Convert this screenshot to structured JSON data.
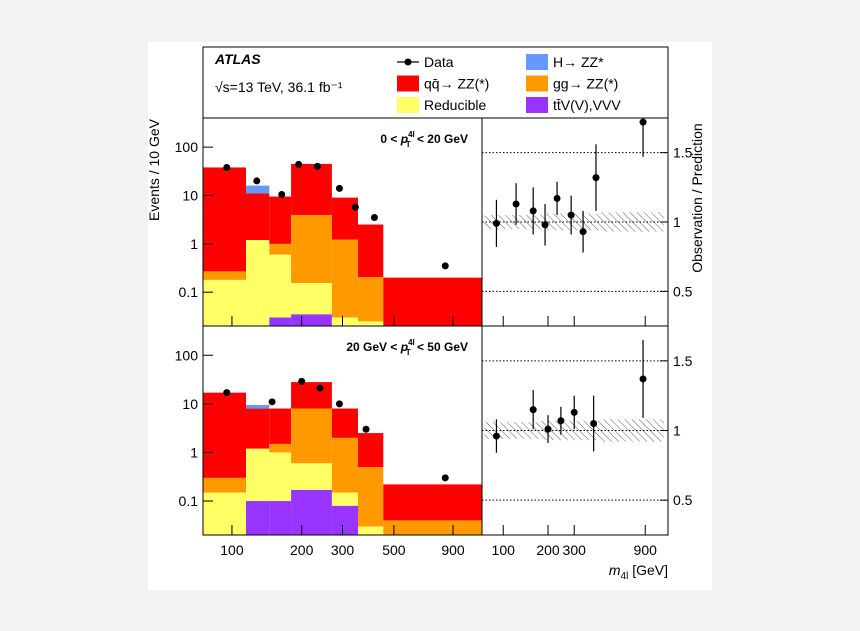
{
  "chart_data": {
    "type": "ratio_grid",
    "experiment": "ATLAS",
    "energy": "√s=13 TeV, 36.1 fb⁻¹",
    "legend": [
      {
        "name": "Data",
        "color": "#000000"
      },
      {
        "name": "H→ ZZ*",
        "color": "#6699ff"
      },
      {
        "name": "qq̄→ ZZ(*)",
        "color": "#ff0000"
      },
      {
        "name": "gg→ ZZ(*)",
        "color": "#ff9900"
      },
      {
        "name": "Reducible",
        "color": "#ffff66"
      },
      {
        "name": "tt̄V(V),VVV",
        "color": "#9933ff"
      }
    ],
    "y_label": "Events / 10 GeV",
    "ratio_label": "Observation / Prediction",
    "x_label": {
      "var": "m",
      "sub": "4l",
      "unit": " [GeV]"
    },
    "log_x": true,
    "log_y": true,
    "xlim": [
      75,
      1200
    ],
    "xticks": [
      100,
      200,
      300,
      500,
      900
    ],
    "ylim": [
      0.02,
      400
    ],
    "yticks": [
      0.1,
      1,
      10,
      100
    ],
    "ratio_xlim": [
      72,
      1280
    ],
    "ratio_xticks": [
      100,
      200,
      300,
      900
    ],
    "ratio_ylim": [
      0.25,
      1.75
    ],
    "ratio_yticks": [
      0.5,
      1,
      1.5
    ],
    "ratio_grid": true,
    "bins": [
      75,
      115,
      145,
      180,
      270,
      350,
      450,
      1200
    ],
    "panels": [
      {
        "label": {
          "pre": "0 < ",
          "var": "p",
          "sup": "4l",
          "sub": "T",
          "post": " < 20 GeV"
        },
        "stack": [
          [
            0,
            5,
            0,
            0,
            0,
            0,
            0
          ],
          [
            37.7,
            9.8,
            8.5,
            41,
            7.8,
            2.3,
            0.2
          ],
          [
            0.09,
            0,
            0.4,
            3.8,
            1.2,
            0.18,
            0
          ],
          [
            0.18,
            1.2,
            0.57,
            0.12,
            0.03,
            0.025,
            0
          ],
          [
            0,
            0,
            0.03,
            0.035,
            0,
            0,
            0
          ]
        ],
        "data": {
          "x": [
            95,
            128,
            164,
            194,
            234,
            291,
            341,
            412,
            833
          ],
          "values": [
            38,
            20,
            10.5,
            44,
            40,
            14,
            5.7,
            3.5,
            0.35
          ]
        },
        "ratio": {
          "x": [
            90,
            122,
            159,
            191,
            230,
            286,
            344,
            420,
            870
          ],
          "values": [
            0.99,
            1.13,
            1.08,
            0.98,
            1.17,
            1.05,
            0.93,
            1.32,
            1.72
          ],
          "errors": [
            0.17,
            0.15,
            0.17,
            0.15,
            0.12,
            0.14,
            0.15,
            0.24,
            0.25
          ],
          "uncertainty": [
            0.05,
            0.05,
            0.05,
            0.06,
            0.06,
            0.06,
            0.07
          ]
        }
      },
      {
        "label": {
          "pre": "20 GeV < ",
          "var": "p",
          "sup": "4l",
          "sub": "T",
          "post": " < 50 GeV"
        },
        "stack": [
          [
            0,
            1.5,
            0,
            0,
            0,
            0,
            0
          ],
          [
            16.7,
            6.8,
            6.5,
            20,
            6,
            2,
            0.18
          ],
          [
            0.15,
            0,
            0.5,
            7.4,
            1.85,
            0.47,
            0.04
          ],
          [
            0.15,
            1.1,
            0.9,
            0.43,
            0.07,
            0.03,
            0
          ],
          [
            0,
            0.1,
            0.1,
            0.17,
            0.08,
            0,
            0
          ]
        ],
        "data": {
          "x": [
            95,
            149,
            200,
            240,
            291,
            379,
            833
          ],
          "values": [
            17,
            11,
            29,
            21,
            10,
            3,
            0.3
          ]
        },
        "ratio": {
          "x": [
            90,
            159,
            200,
            244,
            300,
            405,
            870
          ],
          "values": [
            0.96,
            1.15,
            1.01,
            1.07,
            1.13,
            1.05,
            1.37
          ],
          "errors": [
            0.12,
            0.14,
            0.1,
            0.1,
            0.12,
            0.2,
            0.28
          ],
          "uncertainty": [
            0.06,
            0.06,
            0.06,
            0.07,
            0.07,
            0.07,
            0.08
          ]
        }
      }
    ]
  }
}
